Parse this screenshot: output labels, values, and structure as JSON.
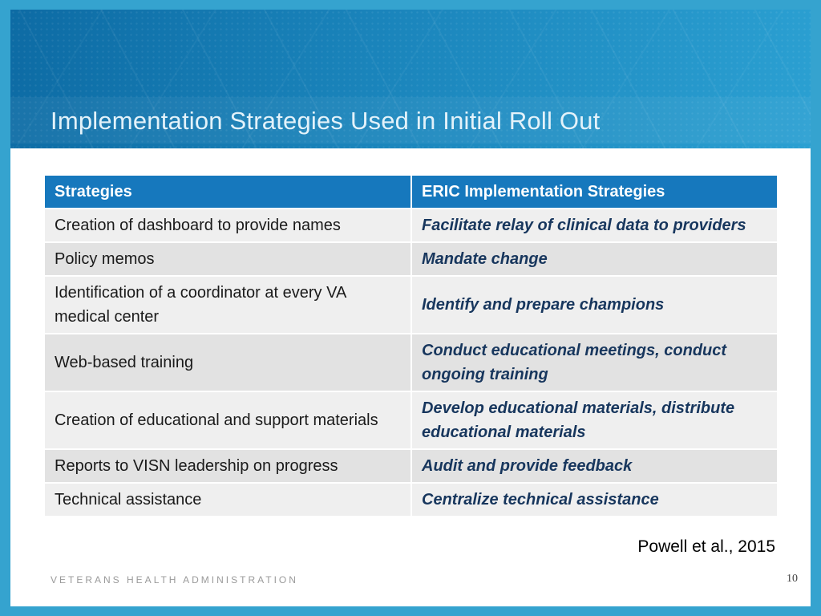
{
  "slide": {
    "title": "Implementation Strategies Used in Initial Roll Out",
    "citation": "Powell et al., 2015",
    "footer": "VETERANS HEALTH ADMINISTRATION",
    "page_number": "10"
  },
  "table": {
    "headers": [
      "Strategies",
      "ERIC Implementation Strategies"
    ],
    "rows": [
      {
        "strategy": "Creation of dashboard to provide names",
        "eric": "Facilitate relay of clinical data to providers"
      },
      {
        "strategy": "Policy memos",
        "eric": "Mandate change"
      },
      {
        "strategy": "Identification of a coordinator at every VA medical center",
        "eric": "Identify and prepare champions"
      },
      {
        "strategy": "Web-based training",
        "eric": "Conduct educational meetings, conduct ongoing training"
      },
      {
        "strategy": "Creation of educational and support materials",
        "eric": "Develop educational materials, distribute educational materials"
      },
      {
        "strategy": "Reports to VISN leadership on progress",
        "eric": "Audit and provide feedback"
      },
      {
        "strategy": "Technical assistance",
        "eric": "Centralize technical assistance"
      }
    ]
  },
  "colors": {
    "frame_blue": "#35a3cf",
    "banner_grad_start": "#0d6ba4",
    "banner_grad_mid": "#1a84bb",
    "banner_grad_end": "#2ba0d2",
    "table_header_bg": "#1678bd",
    "row_light": "#efefef",
    "row_dark": "#e2e2e2",
    "eric_text": "#17365d",
    "strategy_text": "#1a1a1a",
    "title_text": "#e3f2fa"
  }
}
